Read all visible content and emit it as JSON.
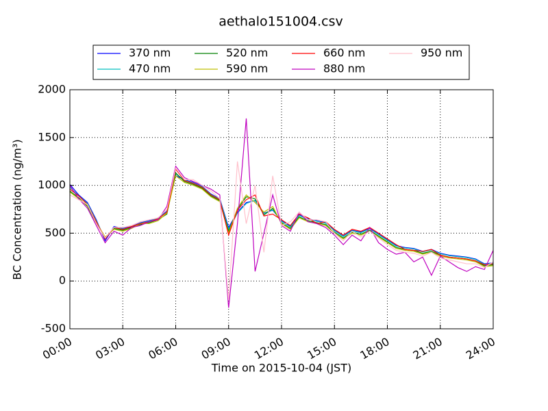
{
  "chart_data": {
    "type": "line",
    "title": "aethalo151004.csv",
    "x_label": "Time on 2015-10-04 (JST)",
    "y_label": "BC Concentration (ng/m³)",
    "xlim": [
      0,
      24
    ],
    "xticks": [
      {
        "value": 0,
        "label": "00:00"
      },
      {
        "value": 3,
        "label": "03:00"
      },
      {
        "value": 6,
        "label": "06:00"
      },
      {
        "value": 9,
        "label": "09:00"
      },
      {
        "value": 12,
        "label": "12:00"
      },
      {
        "value": 15,
        "label": "15:00"
      },
      {
        "value": 18,
        "label": "18:00"
      },
      {
        "value": 21,
        "label": "21:00"
      },
      {
        "value": 24,
        "label": "24:00"
      }
    ],
    "ylim": [
      -500,
      2000
    ],
    "yticks": [
      -500,
      0,
      500,
      1000,
      1500,
      2000
    ],
    "grid": true,
    "legend": "top",
    "x": [
      0,
      0.5,
      1,
      1.5,
      2,
      2.5,
      3,
      3.5,
      4,
      4.5,
      5,
      5.5,
      6,
      6.5,
      7,
      7.5,
      8,
      8.5,
      9,
      9.5,
      10,
      10.5,
      11,
      11.5,
      12,
      12.5,
      13,
      13.5,
      14,
      14.5,
      15,
      15.5,
      16,
      16.5,
      17,
      17.5,
      18,
      18.5,
      19,
      19.5,
      20,
      20.5,
      21,
      21.5,
      22,
      22.5,
      23,
      23.5,
      24
    ],
    "series": [
      {
        "name": "370 nm",
        "color": "#0000ff",
        "values": [
          1010,
          900,
          820,
          640,
          420,
          570,
          550,
          570,
          610,
          630,
          660,
          730,
          1100,
          1060,
          1030,
          990,
          910,
          860,
          560,
          720,
          820,
          840,
          710,
          740,
          630,
          570,
          690,
          650,
          630,
          610,
          530,
          470,
          530,
          510,
          550,
          490,
          430,
          370,
          350,
          340,
          310,
          330,
          290,
          270,
          260,
          250,
          230,
          180,
          190
        ]
      },
      {
        "name": "470 nm",
        "color": "#00bfbf",
        "values": [
          980,
          890,
          810,
          630,
          440,
          560,
          545,
          565,
          605,
          625,
          655,
          725,
          1120,
          1055,
          1025,
          985,
          905,
          855,
          540,
          710,
          810,
          845,
          705,
          745,
          625,
          565,
          685,
          645,
          625,
          605,
          525,
          465,
          525,
          505,
          545,
          485,
          425,
          365,
          345,
          335,
          305,
          325,
          285,
          265,
          255,
          245,
          225,
          175,
          185
        ]
      },
      {
        "name": "520 nm",
        "color": "#008000",
        "values": [
          940,
          870,
          780,
          600,
          450,
          550,
          530,
          560,
          590,
          610,
          640,
          700,
          1130,
          1040,
          1010,
          970,
          890,
          840,
          520,
          750,
          880,
          860,
          690,
          760,
          610,
          550,
          670,
          630,
          610,
          590,
          510,
          450,
          510,
          490,
          530,
          470,
          410,
          350,
          330,
          320,
          290,
          310,
          270,
          250,
          240,
          230,
          210,
          160,
          170
        ]
      },
      {
        "name": "590 nm",
        "color": "#bfbf00",
        "values": [
          930,
          860,
          790,
          610,
          460,
          540,
          520,
          550,
          600,
          600,
          630,
          710,
          1100,
          1030,
          1000,
          960,
          880,
          830,
          500,
          760,
          900,
          820,
          720,
          780,
          600,
          540,
          660,
          620,
          600,
          580,
          500,
          440,
          500,
          480,
          520,
          460,
          400,
          340,
          320,
          310,
          280,
          300,
          260,
          240,
          230,
          220,
          200,
          150,
          160
        ]
      },
      {
        "name": "660 nm",
        "color": "#ff0000",
        "values": [
          960,
          890,
          800,
          620,
          440,
          560,
          540,
          570,
          600,
          620,
          650,
          720,
          1170,
          1050,
          1020,
          980,
          900,
          850,
          480,
          740,
          850,
          900,
          680,
          700,
          640,
          580,
          700,
          660,
          600,
          620,
          540,
          480,
          540,
          520,
          560,
          500,
          440,
          380,
          330,
          320,
          310,
          330,
          270,
          250,
          240,
          230,
          210,
          170,
          180
        ]
      },
      {
        "name": "880 nm",
        "color": "#bf00bf",
        "values": [
          1000,
          860,
          760,
          580,
          400,
          520,
          480,
          560,
          580,
          620,
          640,
          780,
          1200,
          1080,
          1040,
          1000,
          960,
          900,
          -280,
          600,
          1700,
          100,
          500,
          900,
          580,
          520,
          720,
          620,
          600,
          560,
          480,
          380,
          480,
          420,
          560,
          400,
          330,
          280,
          300,
          200,
          250,
          60,
          260,
          200,
          140,
          100,
          150,
          120,
          320
        ]
      },
      {
        "name": "950 nm",
        "color": "#ffc0cb",
        "values": [
          900,
          850,
          800,
          600,
          450,
          560,
          560,
          580,
          620,
          640,
          660,
          750,
          1180,
          1060,
          1060,
          1000,
          940,
          860,
          -200,
          1250,
          600,
          1000,
          300,
          1100,
          580,
          620,
          720,
          640,
          640,
          620,
          500,
          420,
          520,
          460,
          520,
          450,
          380,
          320,
          300,
          290,
          260,
          300,
          240,
          220,
          200,
          180,
          180,
          140,
          200
        ]
      }
    ]
  }
}
